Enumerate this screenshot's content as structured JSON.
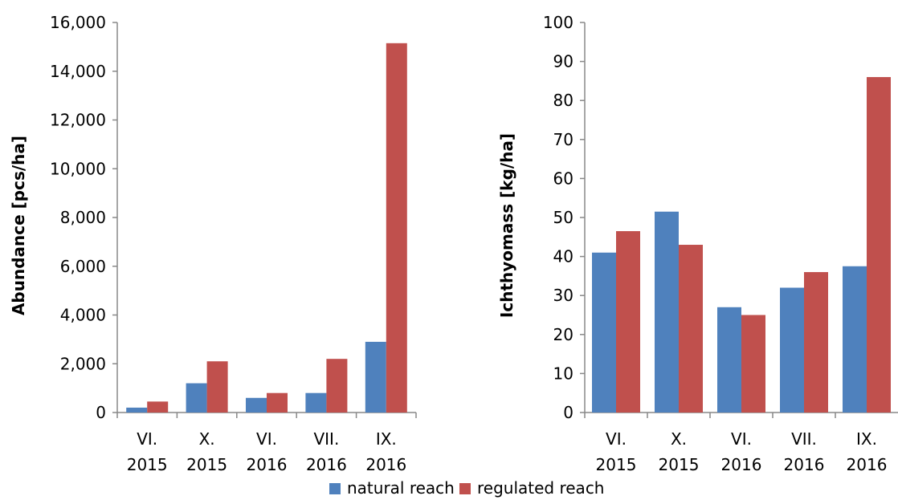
{
  "chart_data": [
    {
      "type": "bar",
      "categories": [
        [
          "VI.",
          "2015"
        ],
        [
          "X.",
          "2015"
        ],
        [
          "VI.",
          "2016"
        ],
        [
          "VII.",
          "2016"
        ],
        [
          "IX.",
          "2016"
        ]
      ],
      "series": [
        {
          "name": "natural reach",
          "values": [
            200,
            1200,
            600,
            800,
            2900
          ]
        },
        {
          "name": "regulated reach",
          "values": [
            450,
            2100,
            800,
            2200,
            15150
          ]
        }
      ],
      "ylabel": "Abundance [pcs/ha]",
      "ylim": [
        0,
        16000
      ],
      "yticks": [
        0,
        2000,
        4000,
        6000,
        8000,
        10000,
        12000,
        14000,
        16000
      ],
      "ytick_labels": [
        "0",
        "2,000",
        "4,000",
        "6,000",
        "8,000",
        "10,000",
        "12,000",
        "14,000",
        "16,000"
      ],
      "grid": false
    },
    {
      "type": "bar",
      "categories": [
        [
          "VI.",
          "2015"
        ],
        [
          "X.",
          "2015"
        ],
        [
          "VI.",
          "2016"
        ],
        [
          "VII.",
          "2016"
        ],
        [
          "IX.",
          "2016"
        ]
      ],
      "series": [
        {
          "name": "natural reach",
          "values": [
            41,
            51.5,
            27,
            32,
            37.5
          ]
        },
        {
          "name": "regulated reach",
          "values": [
            46.5,
            43,
            25,
            36,
            86
          ]
        }
      ],
      "ylabel": "Ichthyomass [kg/ha]",
      "ylim": [
        0,
        100
      ],
      "yticks": [
        0,
        10,
        20,
        30,
        40,
        50,
        60,
        70,
        80,
        90,
        100
      ],
      "ytick_labels": [
        "0",
        "10",
        "20",
        "30",
        "40",
        "50",
        "60",
        "70",
        "80",
        "90",
        "100"
      ],
      "grid": false
    }
  ],
  "legend": {
    "position": "bottom-center",
    "items": [
      {
        "label": "natural reach",
        "color": "#4f81bd"
      },
      {
        "label": "regulated reach",
        "color": "#c0504d"
      }
    ]
  }
}
